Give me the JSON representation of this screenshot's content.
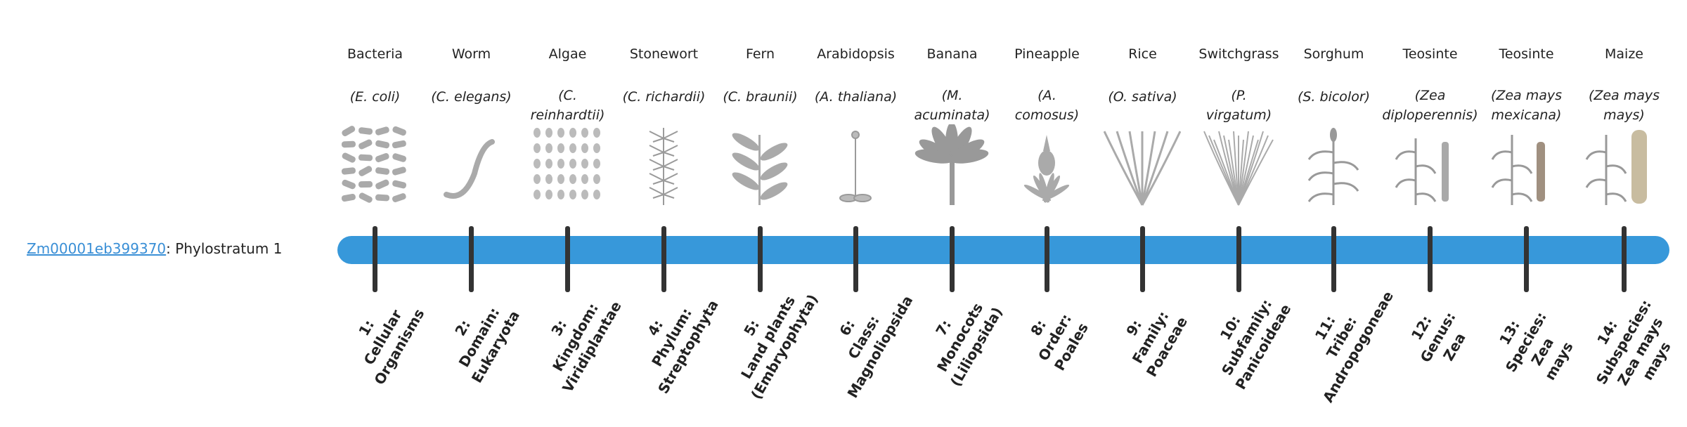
{
  "gene": {
    "id": "Zm00001eb399370",
    "suffix": ": Phylostratum 1"
  },
  "bar_color": "#3798da",
  "organisms": [
    {
      "common": "Bacteria",
      "species": [
        "(E. coli)"
      ],
      "icon": "bacteria-image"
    },
    {
      "common": "Worm",
      "species": [
        "(C. elegans)"
      ],
      "icon": "worm-image"
    },
    {
      "common": "Algae",
      "species": [
        "(C.",
        "reinhardtii)"
      ],
      "icon": "algae-image"
    },
    {
      "common": "Stonewort",
      "species": [
        "(C. richardii)"
      ],
      "icon": "stonewort-image"
    },
    {
      "common": "Fern",
      "species": [
        "(C. braunii)"
      ],
      "icon": "fern-image"
    },
    {
      "common": "Arabidopsis",
      "species": [
        "(A. thaliana)"
      ],
      "icon": "arabidopsis-image"
    },
    {
      "common": "Banana",
      "species": [
        "(M.",
        "acuminata)"
      ],
      "icon": "banana-image"
    },
    {
      "common": "Pineapple",
      "species": [
        "(A.",
        "comosus)"
      ],
      "icon": "pineapple-image"
    },
    {
      "common": "Rice",
      "species": [
        "(O. sativa)"
      ],
      "icon": "rice-image"
    },
    {
      "common": "Switchgrass",
      "species": [
        "(P.",
        "virgatum)"
      ],
      "icon": "switchgrass-image"
    },
    {
      "common": "Sorghum",
      "species": [
        "(S. bicolor)"
      ],
      "icon": "sorghum-image"
    },
    {
      "common": "Teosinte",
      "species": [
        "(Zea",
        "diploperennis)"
      ],
      "icon": "teosinte-image"
    },
    {
      "common": "Teosinte",
      "species": [
        "(Zea mays",
        "mexicana)"
      ],
      "icon": "teosinte-image"
    },
    {
      "common": "Maize",
      "species": [
        "(Zea mays",
        "mays)"
      ],
      "icon": "maize-image"
    }
  ],
  "ranks": [
    [
      "1:",
      "Cellular",
      "Organisms"
    ],
    [
      "2:",
      "Domain:",
      "Eukaryota"
    ],
    [
      "3:",
      "Kingdom:",
      "Viridiplantae"
    ],
    [
      "4:",
      "Phylum:",
      "Streptophyta"
    ],
    [
      "5:",
      "Land plants",
      "(Embryophyta)"
    ],
    [
      "6:",
      "Class:",
      "Magnoliopsida"
    ],
    [
      "7:",
      "Monocots",
      "(Liliopsida)"
    ],
    [
      "8:",
      "Order:",
      "Poales"
    ],
    [
      "9:",
      "Family:",
      "Poaceae"
    ],
    [
      "10:",
      "Subfamily:",
      "Panicoideae"
    ],
    [
      "11:",
      "Tribe:",
      "Andropogoneae"
    ],
    [
      "12:",
      "Genus:",
      "Zea"
    ],
    [
      "13:",
      "Species:",
      "Zea",
      "mays"
    ],
    [
      "14:",
      "Subspecies:",
      "Zea mays",
      "mays"
    ]
  ]
}
